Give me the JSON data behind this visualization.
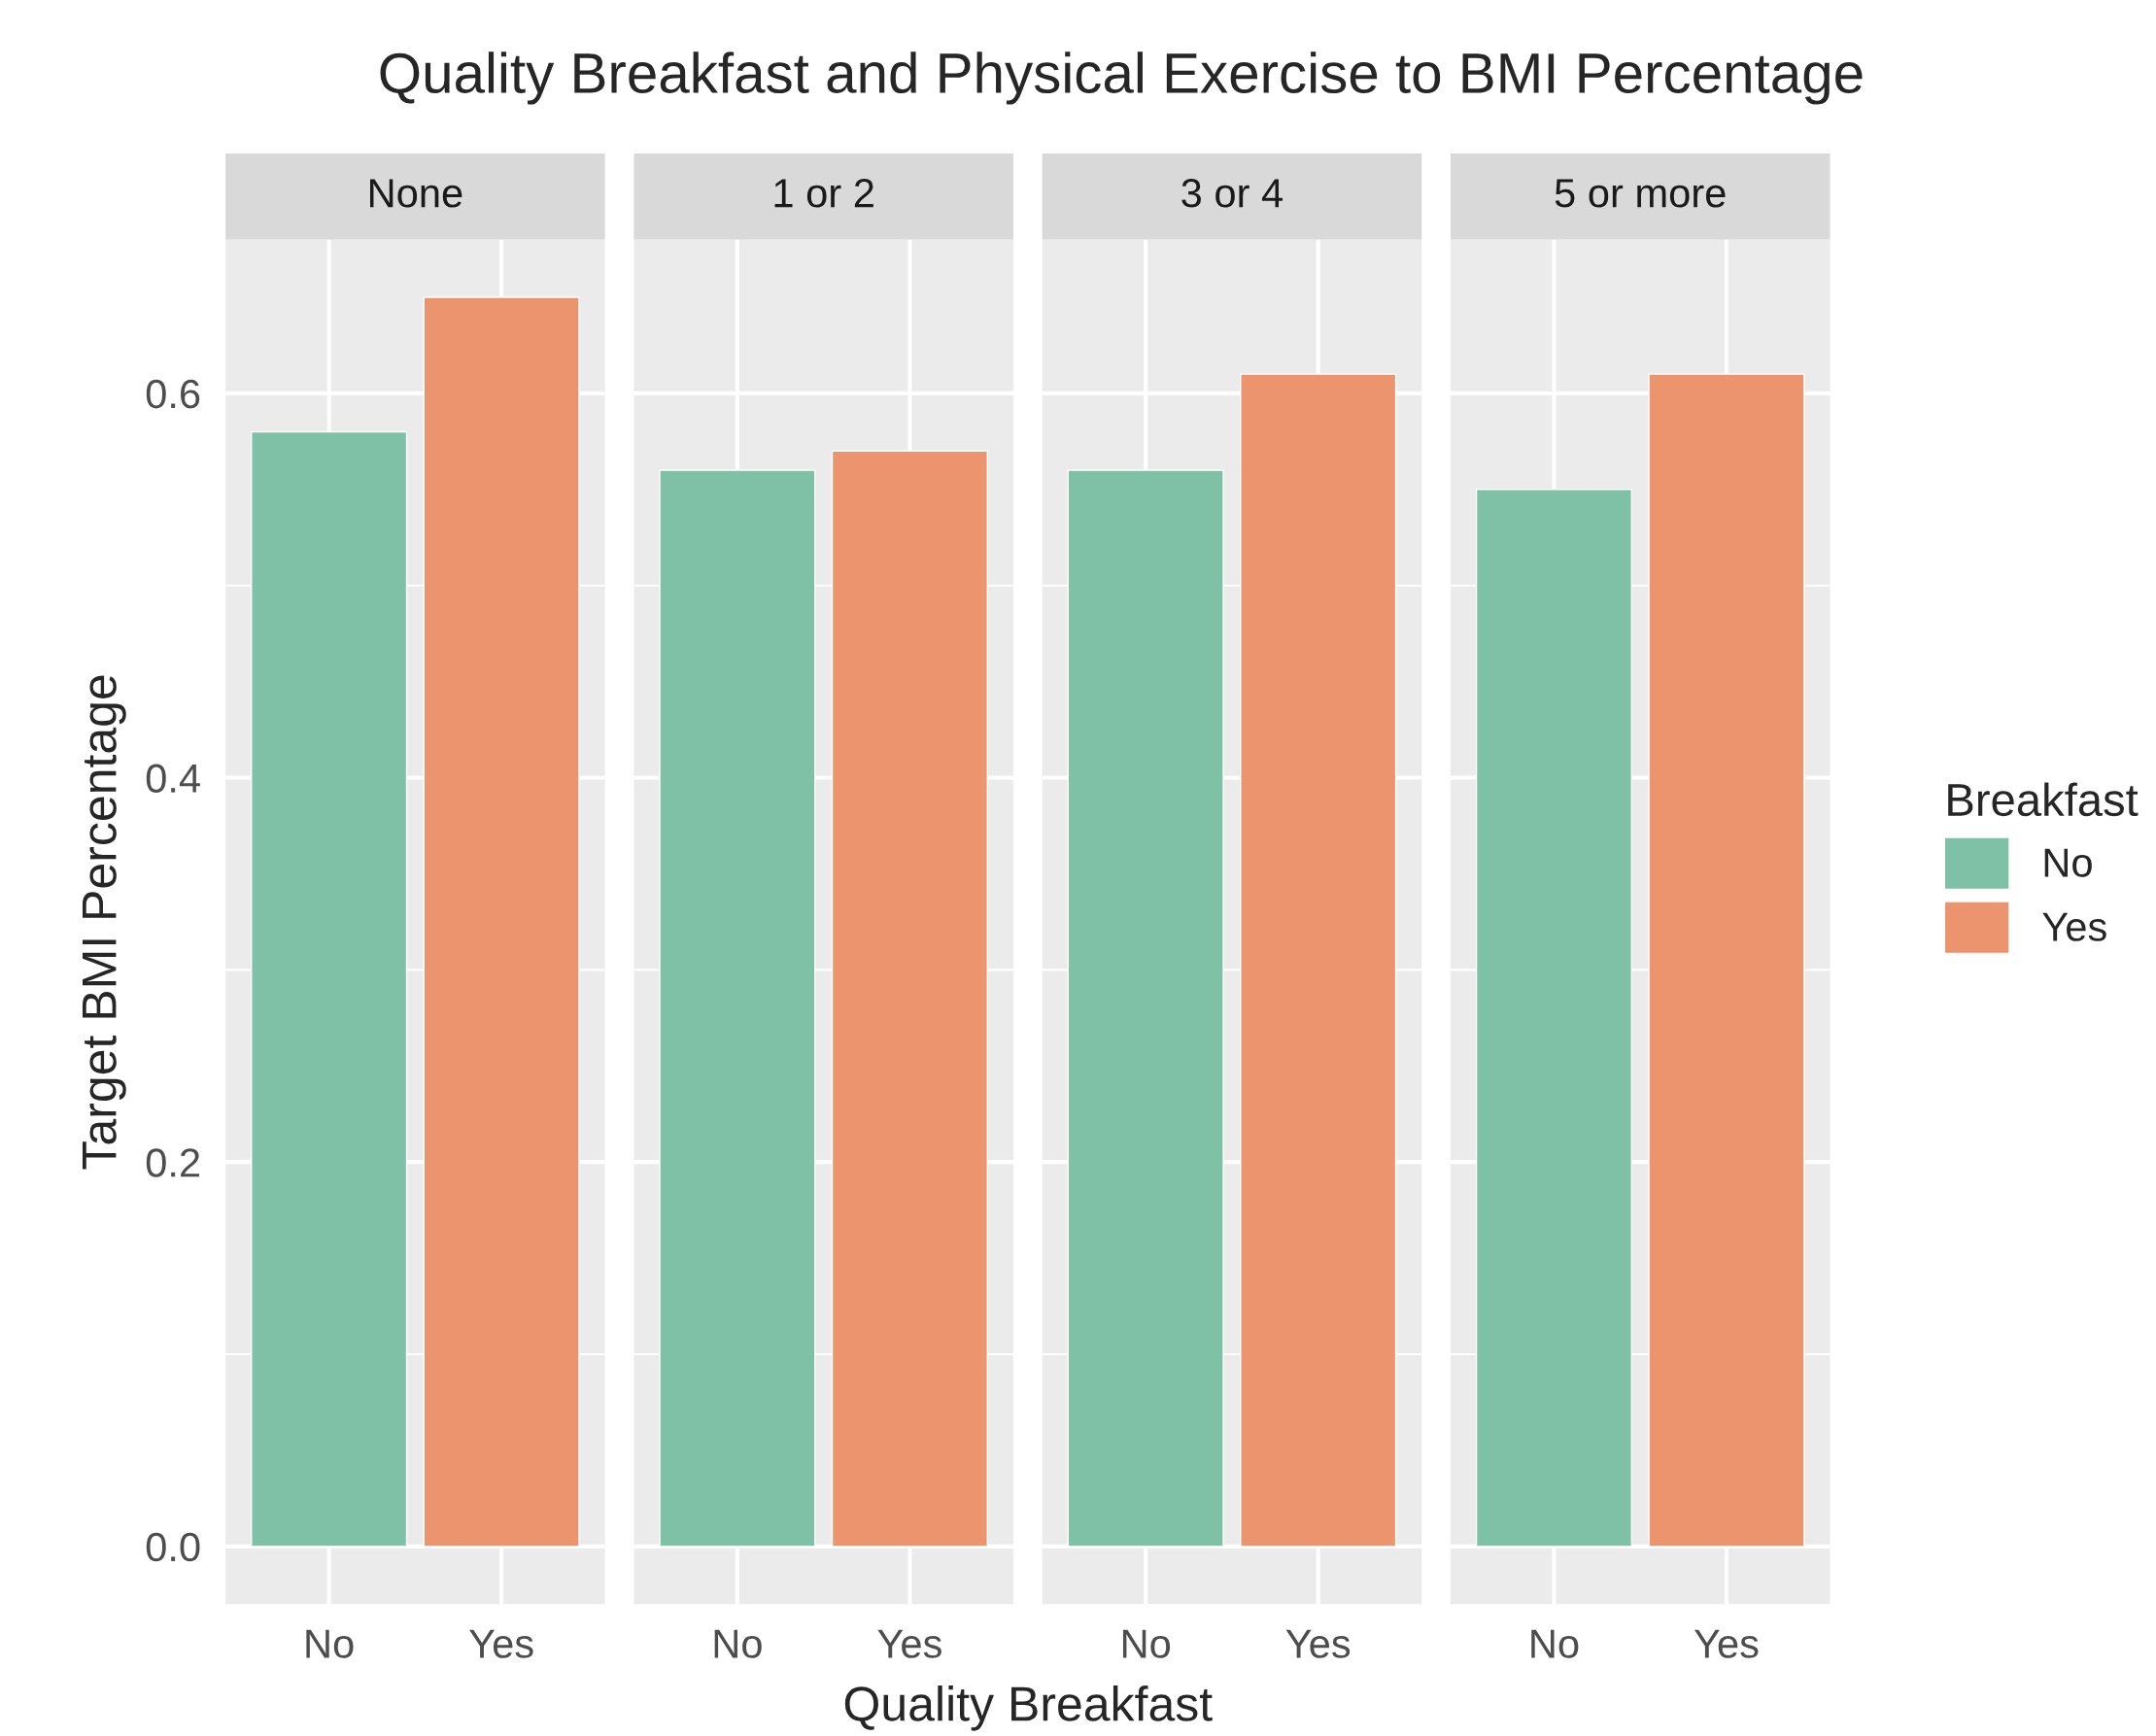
{
  "chart_data": [
    {
      "type": "bar",
      "title": "None",
      "annotations": [
        "Quality Breakfast and Physical Exercise to BMI Percentage"
      ],
      "xlabel": "Quality Breakfast",
      "ylabel": "Target BMI Percentage",
      "legend_title": "Breakfast",
      "legend": "right",
      "categories": [
        "No",
        "Yes"
      ],
      "series": [
        {
          "name": "No",
          "color": "#7fc1a6",
          "values": [
            0.58,
            null
          ]
        },
        {
          "name": "Yes",
          "color": "#eb946d",
          "values": [
            null,
            0.65
          ]
        }
      ],
      "ylim": [
        -0.03,
        0.68
      ],
      "yticks": [
        {
          "value": 0,
          "label": "0.0"
        },
        0.2,
        0.4,
        0.6
      ],
      "grid": true
    },
    {
      "type": "bar",
      "title": "1 or 2",
      "categories": [
        "No",
        "Yes"
      ],
      "series": [
        {
          "color": "#7fc1a6",
          "values": [
            0.56,
            null
          ]
        },
        {
          "color": "#eb946d",
          "values": [
            null,
            0.57
          ]
        }
      ],
      "ylim": [
        -0.03,
        0.68
      ],
      "yticks": [
        0.0,
        0.2,
        0.4,
        0.6
      ],
      "grid": true,
      "tick_labels": "x"
    },
    {
      "type": "bar",
      "title": "3 or 4",
      "categories": [
        "No",
        "Yes"
      ],
      "series": [
        {
          "color": "#7fc1a6",
          "values": [
            0.56,
            null
          ]
        },
        {
          "color": "#eb946d",
          "values": [
            null,
            0.61
          ]
        }
      ],
      "ylim": [
        -0.03,
        0.68
      ],
      "yticks": [
        0.0,
        0.2,
        0.4,
        0.6
      ],
      "grid": true,
      "tick_labels": "x"
    },
    {
      "type": "bar",
      "title": "5 or more",
      "categories": [
        "No",
        "Yes"
      ],
      "series": [
        {
          "color": "#7fc1a6",
          "values": [
            0.55,
            null
          ]
        },
        {
          "color": "#eb946d",
          "values": [
            null,
            0.61
          ]
        }
      ],
      "ylim": [
        -0.03,
        0.68
      ],
      "yticks": [
        0.0,
        0.2,
        0.4,
        0.6
      ],
      "grid": true,
      "tick_labels": "x"
    }
  ]
}
